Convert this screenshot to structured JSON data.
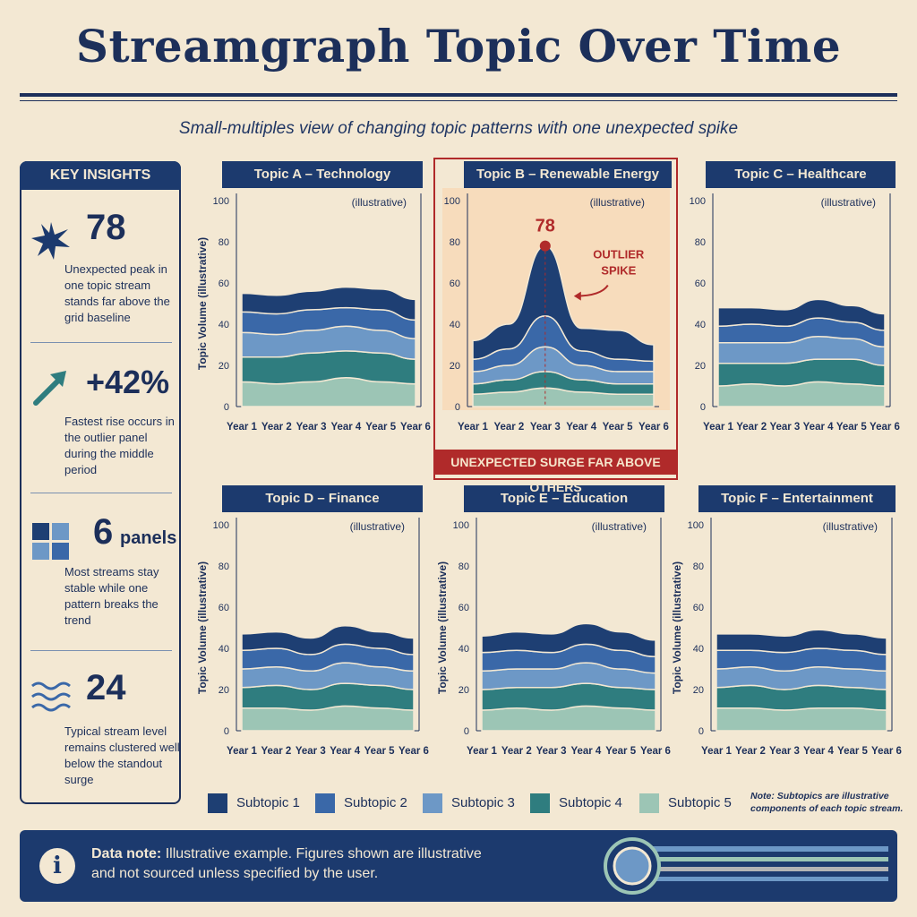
{
  "title": "Streamgraph Topic Over Time",
  "subtitle": "Small-multiples view of changing topic patterns with one unexpected spike",
  "sidebar": {
    "heading": "KEY INSIGHTS",
    "insights": [
      {
        "icon": "star-icon",
        "value": "78",
        "text": "Unexpected peak in one topic stream stands far above the grid baseline"
      },
      {
        "icon": "trend-arrow-icon",
        "value": "+42%",
        "text": "Fastest rise occurs in the outlier panel during the middle period"
      },
      {
        "icon": "grid-squares-icon",
        "value": "6",
        "value_suffix": "panels",
        "text": "Most streams stay stable while one pattern breaks the trend"
      },
      {
        "icon": "waves-icon",
        "value": "24",
        "text": "Typical stream level remains clustered well below the standout surge"
      }
    ]
  },
  "colors": {
    "background": "#f3e8d3",
    "navy": "#1c3a6e",
    "accent_red": "#b02a2a",
    "outlier_bg": "#f7dcbc",
    "subtopics": [
      "#1e3f73",
      "#3a68a8",
      "#6d98c6",
      "#2f7d7f",
      "#9cc5b5"
    ]
  },
  "legend": {
    "items": [
      "Subtopic 1",
      "Subtopic 2",
      "Subtopic 3",
      "Subtopic 4",
      "Subtopic 5"
    ],
    "note": "Note: Subtopics are illustrative components of each topic stream."
  },
  "footer": {
    "label": "Data note:",
    "text": "Illustrative example. Figures shown are illustrative and not sourced unless specified by the user."
  },
  "chart_data": [
    {
      "type": "area",
      "stacked": true,
      "title": "Topic A – Technology",
      "note": "(illustrative)",
      "ylabel": "Topic Volume (illustrative)",
      "ylim": [
        0,
        100
      ],
      "yticks": [
        0,
        20,
        40,
        60,
        80,
        100
      ],
      "x": [
        "Year 1",
        "Year 2",
        "Year 3",
        "Year 4",
        "Year 5",
        "Year 6"
      ],
      "series": [
        {
          "name": "Subtopic 5",
          "values": [
            12,
            11,
            12,
            14,
            12,
            11
          ]
        },
        {
          "name": "Subtopic 4",
          "values": [
            12,
            13,
            14,
            13,
            14,
            12
          ]
        },
        {
          "name": "Subtopic 3",
          "values": [
            12,
            11,
            11,
            12,
            11,
            10
          ]
        },
        {
          "name": "Subtopic 2",
          "values": [
            10,
            10,
            10,
            9,
            10,
            9
          ]
        },
        {
          "name": "Subtopic 1",
          "values": [
            9,
            9,
            9,
            10,
            10,
            10
          ]
        }
      ]
    },
    {
      "type": "area",
      "stacked": true,
      "title": "Topic B – Renewable Energy",
      "note": "(illustrative)",
      "ylim": [
        0,
        100
      ],
      "yticks": [
        0,
        20,
        40,
        60,
        80,
        100
      ],
      "x": [
        "Year 1",
        "Year 2",
        "Year 3",
        "Year 4",
        "Year 5",
        "Year 6"
      ],
      "series": [
        {
          "name": "Subtopic 5",
          "values": [
            6,
            7,
            9,
            7,
            6,
            6
          ]
        },
        {
          "name": "Subtopic 4",
          "values": [
            5,
            6,
            8,
            6,
            5,
            5
          ]
        },
        {
          "name": "Subtopic 3",
          "values": [
            6,
            7,
            12,
            7,
            6,
            6
          ]
        },
        {
          "name": "Subtopic 2",
          "values": [
            6,
            8,
            15,
            7,
            6,
            5
          ]
        },
        {
          "name": "Subtopic 1",
          "values": [
            9,
            12,
            34,
            11,
            14,
            8
          ]
        }
      ],
      "annotations": [
        {
          "text": "78",
          "x": "Year 3",
          "y": 78
        },
        {
          "text": "OUTLIER SPIKE"
        },
        {
          "text": "UNEXPECTED SURGE FAR ABOVE OTHERS"
        }
      ]
    },
    {
      "type": "area",
      "stacked": true,
      "title": "Topic C – Healthcare",
      "note": "(illustrative)",
      "ylim": [
        0,
        100
      ],
      "yticks": [
        0,
        20,
        40,
        60,
        80,
        100
      ],
      "x": [
        "Year 1",
        "Year 2",
        "Year 3",
        "Year 4",
        "Year 5",
        "Year 6"
      ],
      "series": [
        {
          "name": "Subtopic 5",
          "values": [
            10,
            11,
            10,
            12,
            11,
            10
          ]
        },
        {
          "name": "Subtopic 4",
          "values": [
            11,
            10,
            11,
            11,
            12,
            10
          ]
        },
        {
          "name": "Subtopic 3",
          "values": [
            10,
            10,
            10,
            11,
            10,
            9
          ]
        },
        {
          "name": "Subtopic 2",
          "values": [
            8,
            9,
            8,
            9,
            8,
            8
          ]
        },
        {
          "name": "Subtopic 1",
          "values": [
            9,
            8,
            8,
            9,
            8,
            8
          ]
        }
      ]
    },
    {
      "type": "area",
      "stacked": true,
      "title": "Topic D – Finance",
      "note": "(illustrative)",
      "ylabel": "Topic Volume (illustrative)",
      "ylim": [
        0,
        100
      ],
      "yticks": [
        0,
        20,
        40,
        60,
        80,
        100
      ],
      "x": [
        "Year 1",
        "Year 2",
        "Year 3",
        "Year 4",
        "Year 5",
        "Year 6"
      ],
      "series": [
        {
          "name": "Subtopic 5",
          "values": [
            11,
            11,
            10,
            12,
            11,
            10
          ]
        },
        {
          "name": "Subtopic 4",
          "values": [
            10,
            11,
            10,
            11,
            11,
            10
          ]
        },
        {
          "name": "Subtopic 3",
          "values": [
            9,
            9,
            9,
            10,
            9,
            9
          ]
        },
        {
          "name": "Subtopic 2",
          "values": [
            9,
            9,
            8,
            9,
            9,
            8
          ]
        },
        {
          "name": "Subtopic 1",
          "values": [
            8,
            8,
            8,
            9,
            8,
            8
          ]
        }
      ]
    },
    {
      "type": "area",
      "stacked": true,
      "title": "Topic E – Education",
      "note": "(illustrative)",
      "ylabel": "Topic Volume (illustrative)",
      "ylim": [
        0,
        100
      ],
      "yticks": [
        0,
        20,
        40,
        60,
        80,
        100
      ],
      "x": [
        "Year 1",
        "Year 2",
        "Year 3",
        "Year 4",
        "Year 5",
        "Year 6"
      ],
      "series": [
        {
          "name": "Subtopic 5",
          "values": [
            10,
            11,
            10,
            12,
            11,
            10
          ]
        },
        {
          "name": "Subtopic 4",
          "values": [
            10,
            10,
            11,
            11,
            10,
            10
          ]
        },
        {
          "name": "Subtopic 3",
          "values": [
            9,
            9,
            9,
            10,
            9,
            8
          ]
        },
        {
          "name": "Subtopic 2",
          "values": [
            9,
            9,
            8,
            9,
            9,
            8
          ]
        },
        {
          "name": "Subtopic 1",
          "values": [
            8,
            9,
            9,
            10,
            9,
            8
          ]
        }
      ]
    },
    {
      "type": "area",
      "stacked": true,
      "title": "Topic F – Entertainment",
      "note": "(illustrative)",
      "ylabel": "Topic Volume (illustrative)",
      "ylim": [
        0,
        100
      ],
      "yticks": [
        0,
        20,
        40,
        60,
        80,
        100
      ],
      "x": [
        "Year 1",
        "Year 2",
        "Year 3",
        "Year 4",
        "Year 5",
        "Year 6"
      ],
      "series": [
        {
          "name": "Subtopic 5",
          "values": [
            11,
            11,
            10,
            11,
            11,
            10
          ]
        },
        {
          "name": "Subtopic 4",
          "values": [
            10,
            11,
            10,
            11,
            10,
            10
          ]
        },
        {
          "name": "Subtopic 3",
          "values": [
            9,
            9,
            9,
            9,
            9,
            9
          ]
        },
        {
          "name": "Subtopic 2",
          "values": [
            9,
            8,
            9,
            9,
            9,
            8
          ]
        },
        {
          "name": "Subtopic 1",
          "values": [
            8,
            8,
            8,
            9,
            8,
            8
          ]
        }
      ]
    }
  ]
}
